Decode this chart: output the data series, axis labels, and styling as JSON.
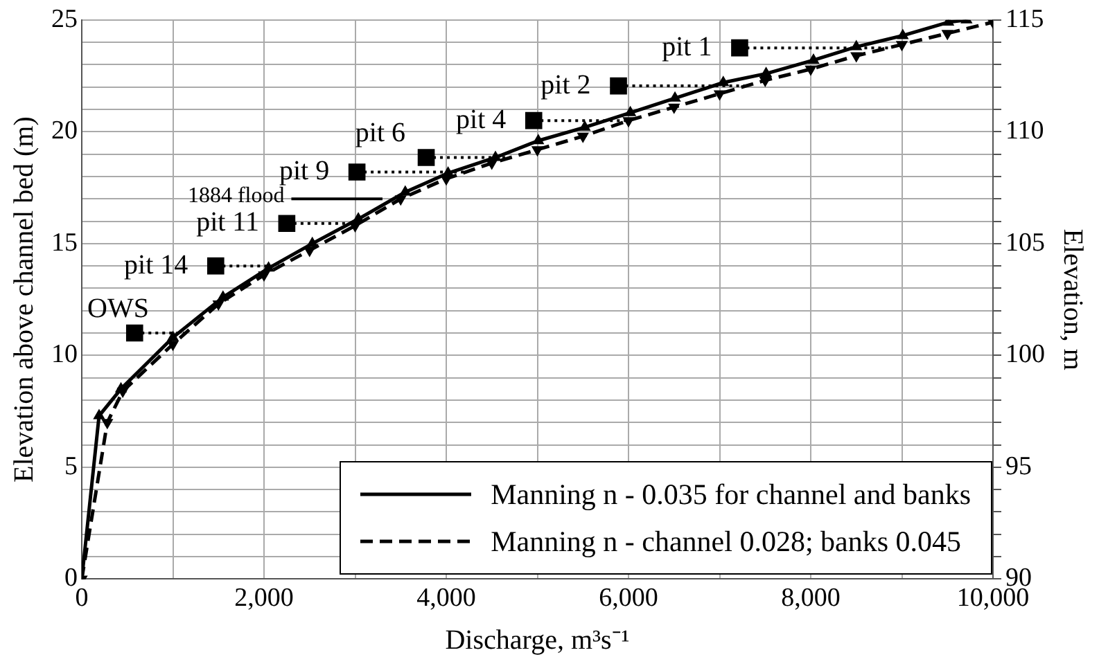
{
  "chart_data": {
    "type": "line",
    "xlabel": "Discharge, m³s⁻¹",
    "ylabel": "Elevation above channel bed (m)",
    "y2label": "Elevation, m",
    "series": [
      {
        "name": "Manning n - 0.035 for channel and banks",
        "color": "#000000",
        "line_style": "solid",
        "marker": "triangle",
        "x": [
          0,
          190,
          430,
          1000,
          1550,
          2050,
          2530,
          3035,
          3550,
          4020,
          4540,
          5010,
          5520,
          6020,
          6510,
          7040,
          7510,
          8030,
          8500,
          9010,
          9510,
          9710
        ],
        "values": [
          0,
          7.3,
          8.5,
          10.8,
          12.6,
          13.9,
          15.0,
          16.1,
          17.3,
          18.15,
          18.85,
          19.6,
          20.2,
          20.85,
          21.5,
          22.2,
          22.6,
          23.2,
          23.8,
          24.3,
          24.9,
          25
        ]
      },
      {
        "name": "Manning n - channel 0.028; banks 0.045",
        "color": "#000000",
        "line_style": "dashed",
        "marker": "triangle",
        "x": [
          0,
          280,
          450,
          1000,
          1500,
          2000,
          2500,
          3000,
          3500,
          4000,
          4500,
          5000,
          5500,
          6000,
          6500,
          7000,
          7500,
          8000,
          8500,
          9000,
          9500,
          10000
        ],
        "values": [
          0,
          7.0,
          8.4,
          10.5,
          12.3,
          13.6,
          14.7,
          15.8,
          17.0,
          17.9,
          18.6,
          19.2,
          19.8,
          20.5,
          21.1,
          21.7,
          22.3,
          22.8,
          23.4,
          23.9,
          24.4,
          24.9
        ]
      },
      {
        "type": "scatter",
        "color": "#000000",
        "marker": "square",
        "x": [
          580,
          1470,
          2250,
          3020,
          3780,
          4960,
          5890,
          7220
        ],
        "values": [
          11.0,
          14.0,
          15.9,
          18.2,
          18.85,
          20.5,
          22.05,
          23.75
        ],
        "xerrors": [
          [
            580,
            1140
          ],
          [
            1470,
            2180
          ],
          [
            2250,
            3040
          ],
          [
            3020,
            4210
          ],
          [
            3780,
            4710
          ],
          [
            4960,
            6000
          ],
          [
            5890,
            7290
          ],
          [
            7220,
            8850
          ]
        ],
        "value_labels": [
          "OWS",
          "pit 14",
          "pit 11",
          "pit 9",
          "pit 6",
          "pit 4",
          "pit 2",
          "pit 1"
        ]
      },
      {
        "name": "1884 flood",
        "type": "line",
        "color": "#000000",
        "line_style": "solid",
        "marker": "none",
        "x": [
          2300,
          3300
        ],
        "values": [
          17.0,
          17.0
        ]
      }
    ],
    "xlim": [
      0,
      10000
    ],
    "xticks": [
      0,
      {
        "value": 1000,
        "label": null
      },
      {
        "value": 2000,
        "label": "2,000"
      },
      {
        "value": 3000,
        "label": null
      },
      {
        "value": 4000,
        "label": "4,000"
      },
      {
        "value": 5000,
        "label": null
      },
      {
        "value": 6000,
        "label": "6,000"
      },
      {
        "value": 7000,
        "label": null
      },
      {
        "value": 8000,
        "label": "8,000"
      },
      {
        "value": 9000,
        "label": null
      },
      {
        "value": 10000,
        "label": "10,000"
      }
    ],
    "ylim": [
      0,
      25
    ],
    "yticks": [
      0,
      {
        "value": 1,
        "label": null
      },
      {
        "value": 2,
        "label": null
      },
      {
        "value": 3,
        "label": null
      },
      {
        "value": 4,
        "label": null
      },
      5,
      {
        "value": 6,
        "label": null
      },
      {
        "value": 7,
        "label": null
      },
      {
        "value": 8,
        "label": null
      },
      {
        "value": 9,
        "label": null
      },
      10,
      {
        "value": 11,
        "label": null
      },
      {
        "value": 12,
        "label": null
      },
      {
        "value": 13,
        "label": null
      },
      {
        "value": 14,
        "label": null
      },
      15,
      {
        "value": 16,
        "label": null
      },
      {
        "value": 17,
        "label": null
      },
      {
        "value": 18,
        "label": null
      },
      {
        "value": 19,
        "label": null
      },
      20,
      {
        "value": 21,
        "label": null
      },
      {
        "value": 22,
        "label": null
      },
      {
        "value": 23,
        "label": null
      },
      {
        "value": 24,
        "label": null
      },
      25
    ],
    "y2lim": [
      90,
      115
    ],
    "y2ticks": [
      90,
      {
        "value": 91,
        "label": null
      },
      {
        "value": 92,
        "label": null
      },
      {
        "value": 93,
        "label": null
      },
      {
        "value": 94,
        "label": null
      },
      95,
      {
        "value": 96,
        "label": null
      },
      {
        "value": 97,
        "label": null
      },
      {
        "value": 98,
        "label": null
      },
      {
        "value": 99,
        "label": null
      },
      100,
      {
        "value": 101,
        "label": null
      },
      {
        "value": 102,
        "label": null
      },
      {
        "value": 103,
        "label": null
      },
      {
        "value": 104,
        "label": null
      },
      105,
      {
        "value": 106,
        "label": null
      },
      {
        "value": 107,
        "label": null
      },
      {
        "value": 108,
        "label": null
      },
      {
        "value": 109,
        "label": null
      },
      110,
      {
        "value": 111,
        "label": null
      },
      {
        "value": 112,
        "label": null
      },
      {
        "value": 113,
        "label": null
      },
      {
        "value": 114,
        "label": null
      },
      115
    ],
    "grid": true,
    "legend": "bottom right"
  }
}
